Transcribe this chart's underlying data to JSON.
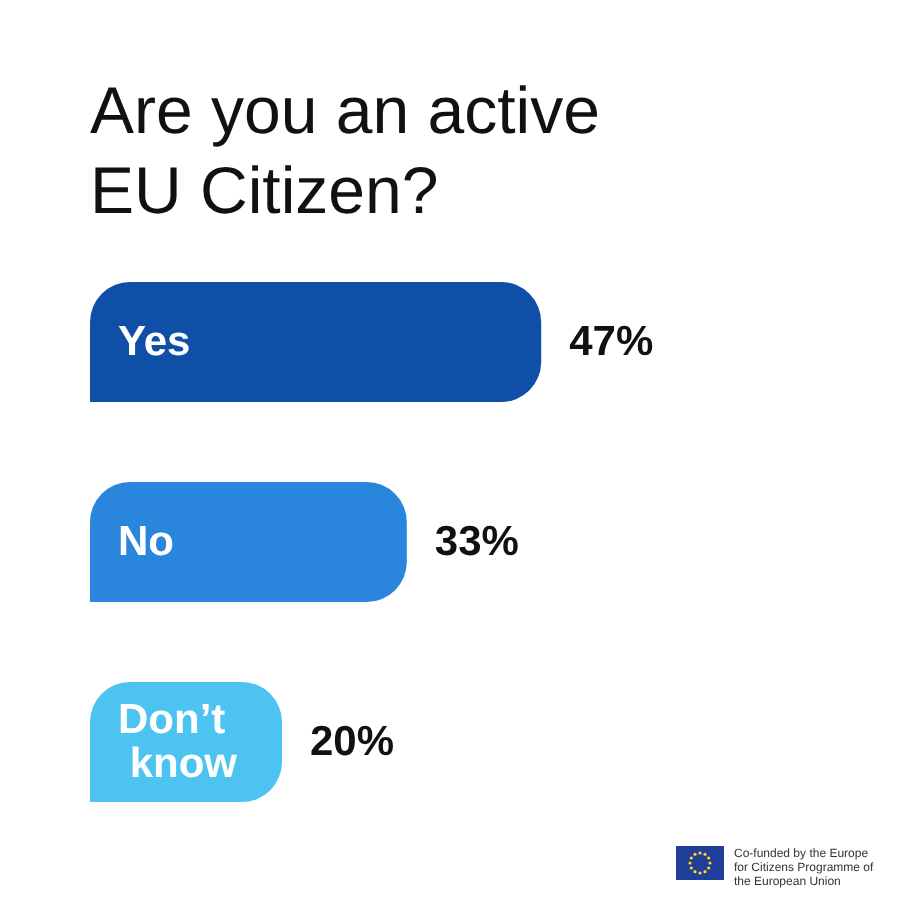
{
  "chart_data": {
    "type": "bar",
    "orientation": "horizontal",
    "title": "Are you an active EU Citizen?",
    "categories": [
      "Yes",
      "No",
      "Don’t know"
    ],
    "values": [
      47,
      33,
      20
    ],
    "colors": [
      "#0f4fa8",
      "#2a86dc",
      "#4cc3f0"
    ],
    "value_labels": [
      "47%",
      "33%",
      "20%"
    ],
    "annotations": [
      "Co-funded by the Europe for Citizens Programme of the European Union"
    ]
  }
}
